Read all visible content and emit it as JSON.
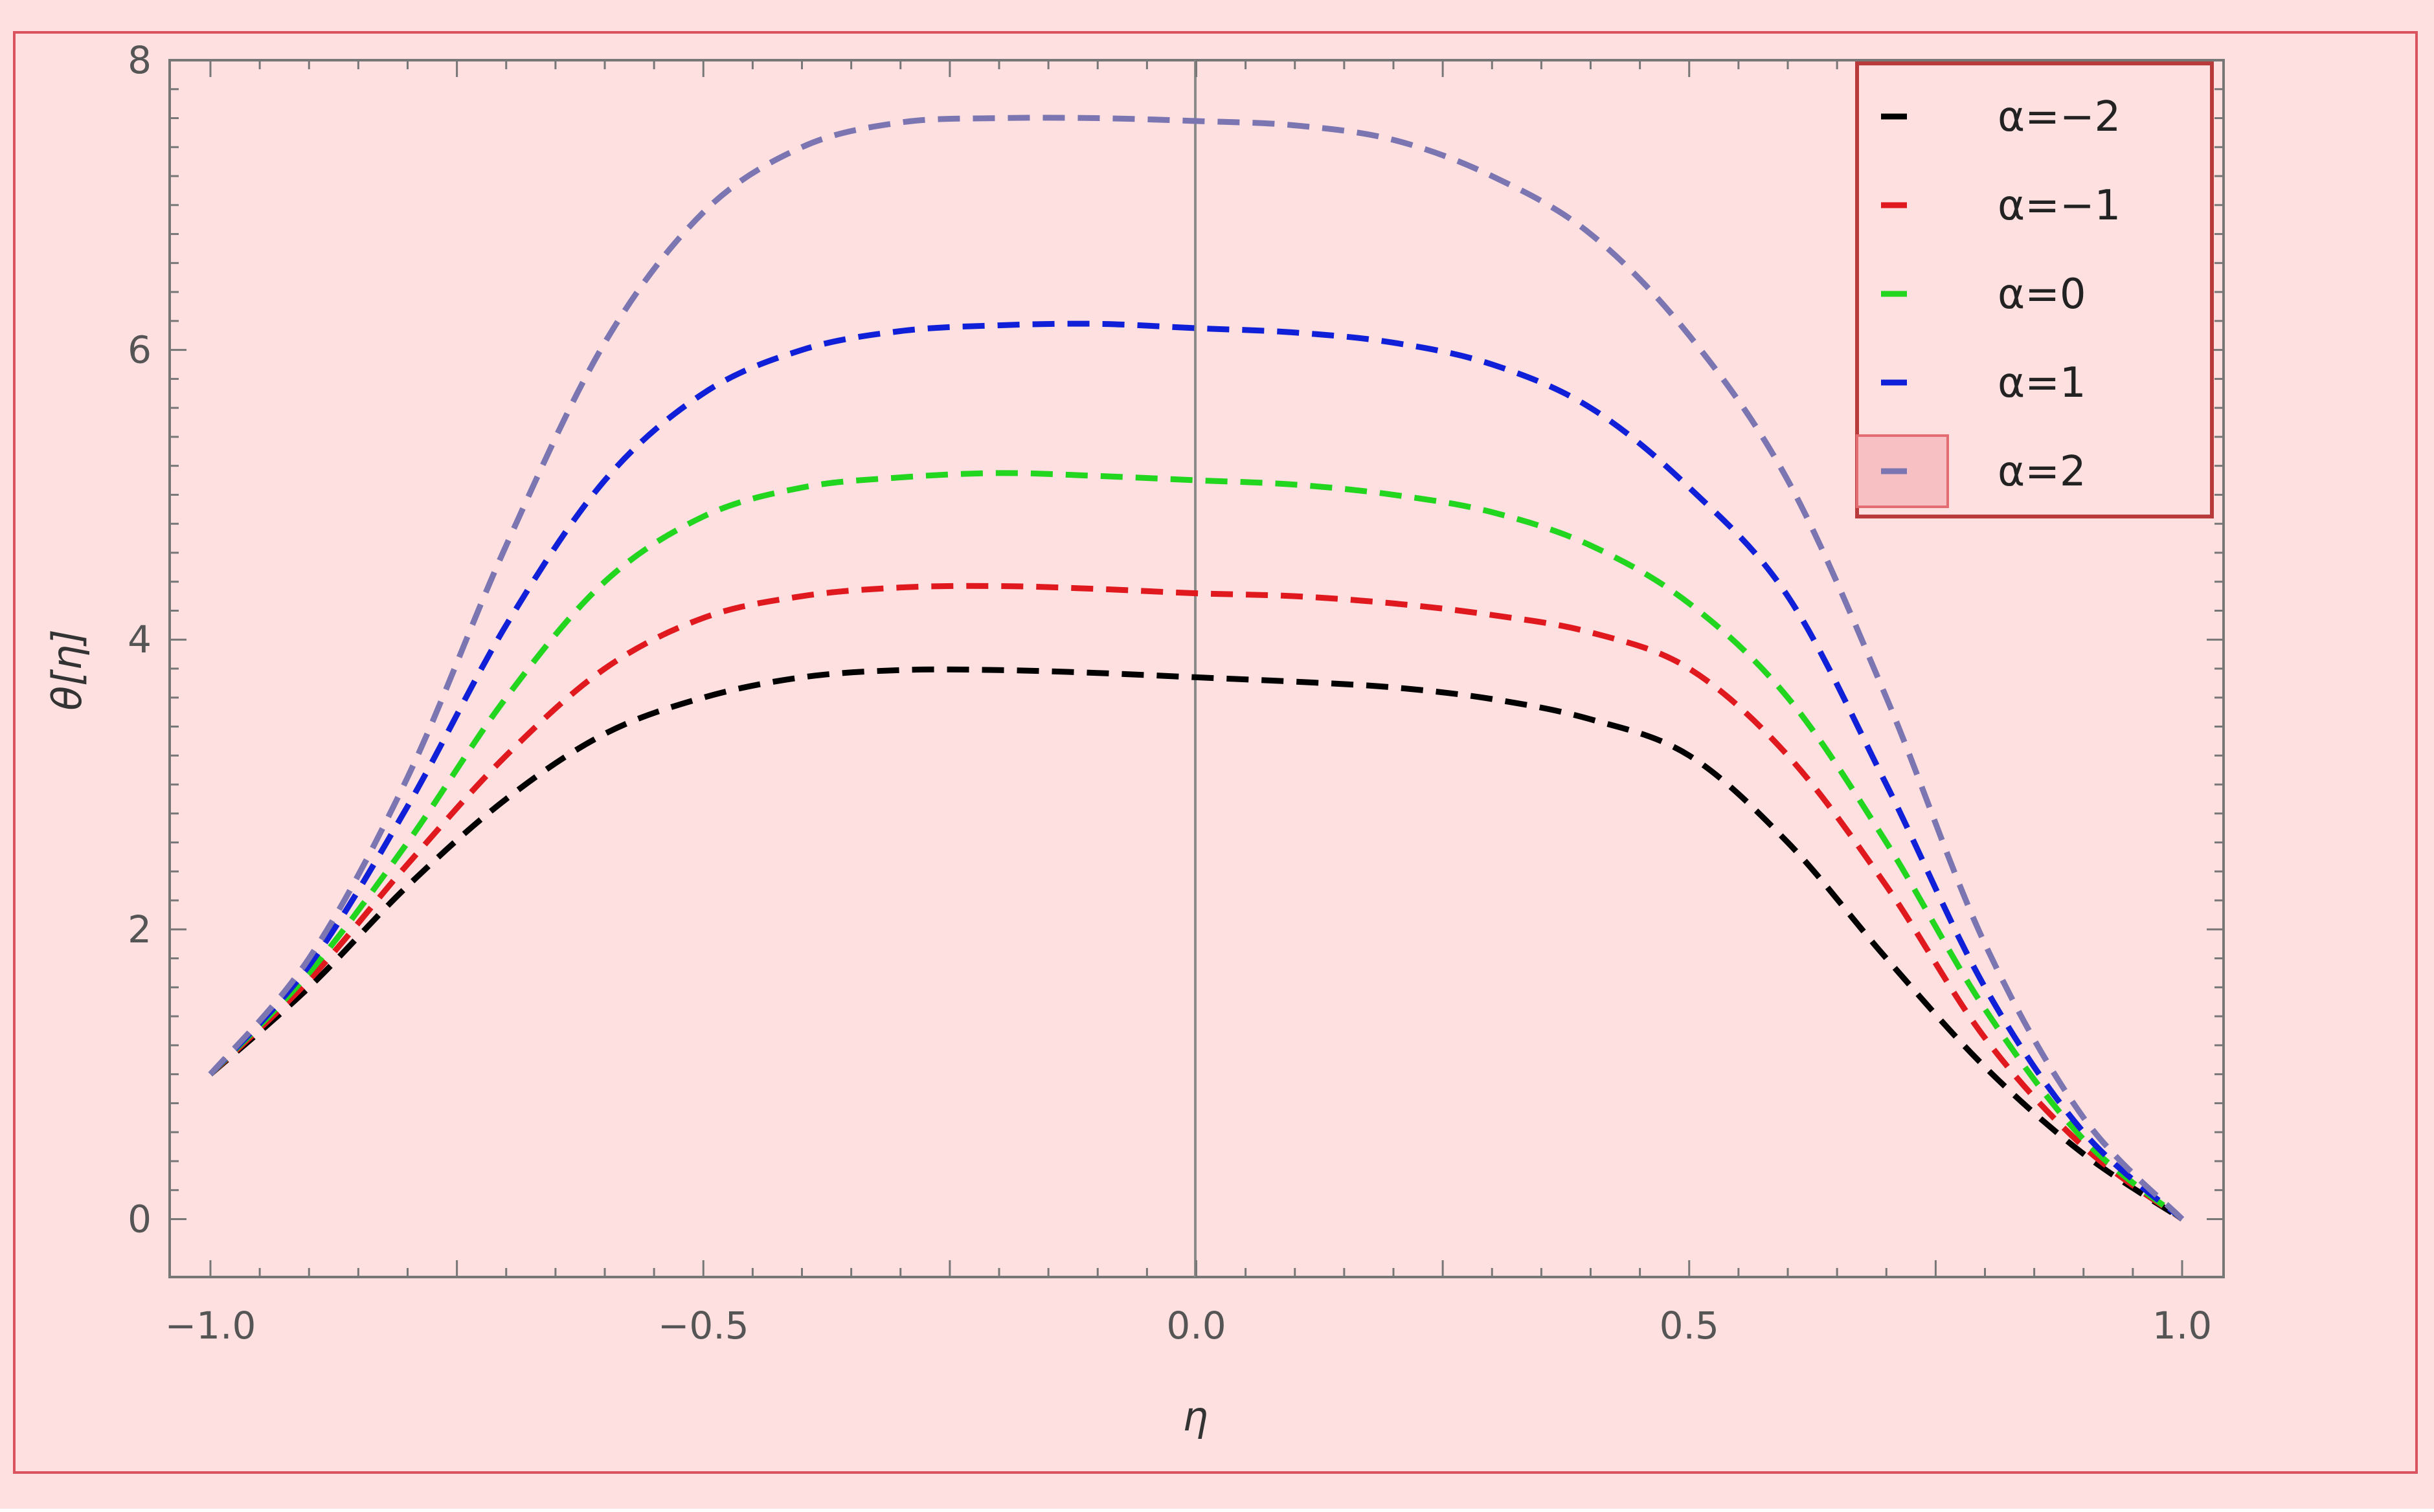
{
  "colors": {
    "figure_bg": "#ffe0e1",
    "frame_border": "#d9545f",
    "axis": "#777777",
    "zero_line": "#8a8a8a",
    "legend_border": "#b83a3a",
    "legend_highlight_fill": "#f7c1c4",
    "legend_highlight_border": "#e36b72"
  },
  "chart_data": {
    "type": "line",
    "xlabel": "η",
    "ylabel": "θ[η]",
    "xlim": [
      -1.0,
      1.0
    ],
    "ylim": [
      -0.4,
      8.0
    ],
    "xticks": [
      "-1.0",
      "-0.5",
      "0.0",
      "0.5",
      "1.0"
    ],
    "yticks": [
      "0",
      "2",
      "4",
      "6",
      "8"
    ],
    "grid": false,
    "line_style": "dashed",
    "legend_position": "top-right",
    "x": [
      -1.0,
      -0.9,
      -0.8,
      -0.7,
      -0.6,
      -0.5,
      -0.4,
      -0.3,
      -0.2,
      -0.1,
      0.0,
      0.1,
      0.2,
      0.3,
      0.4,
      0.5,
      0.6,
      0.7,
      0.8,
      0.9,
      1.0
    ],
    "series": [
      {
        "name": "α=−2",
        "color": "#000000",
        "values": [
          1.0,
          1.6,
          2.3,
          2.9,
          3.35,
          3.6,
          3.74,
          3.79,
          3.79,
          3.77,
          3.74,
          3.71,
          3.67,
          3.59,
          3.45,
          3.2,
          2.6,
          1.8,
          1.05,
          0.45,
          0.0
        ]
      },
      {
        "name": "α=−1",
        "color": "#e0191f",
        "values": [
          1.0,
          1.65,
          2.45,
          3.2,
          3.8,
          4.15,
          4.3,
          4.36,
          4.37,
          4.35,
          4.32,
          4.3,
          4.25,
          4.17,
          4.05,
          3.8,
          3.2,
          2.3,
          1.25,
          0.5,
          0.0
        ]
      },
      {
        "name": "α=0",
        "color": "#22d61f",
        "values": [
          1.0,
          1.7,
          2.6,
          3.6,
          4.4,
          4.85,
          5.05,
          5.12,
          5.15,
          5.13,
          5.1,
          5.07,
          5.0,
          4.88,
          4.65,
          4.25,
          3.6,
          2.6,
          1.45,
          0.55,
          0.0
        ]
      },
      {
        "name": "α=1",
        "color": "#1020d8",
        "values": [
          1.0,
          1.75,
          2.85,
          4.1,
          5.1,
          5.7,
          6.0,
          6.13,
          6.17,
          6.18,
          6.15,
          6.12,
          6.05,
          5.9,
          5.6,
          5.05,
          4.3,
          3.0,
          1.6,
          0.6,
          0.0
        ]
      },
      {
        "name": "α=2",
        "color": "#7b76b2",
        "values": [
          1.0,
          1.8,
          3.05,
          4.65,
          6.05,
          6.95,
          7.4,
          7.57,
          7.6,
          7.6,
          7.58,
          7.55,
          7.45,
          7.2,
          6.8,
          6.1,
          5.1,
          3.6,
          1.9,
          0.7,
          0.0
        ]
      }
    ]
  }
}
